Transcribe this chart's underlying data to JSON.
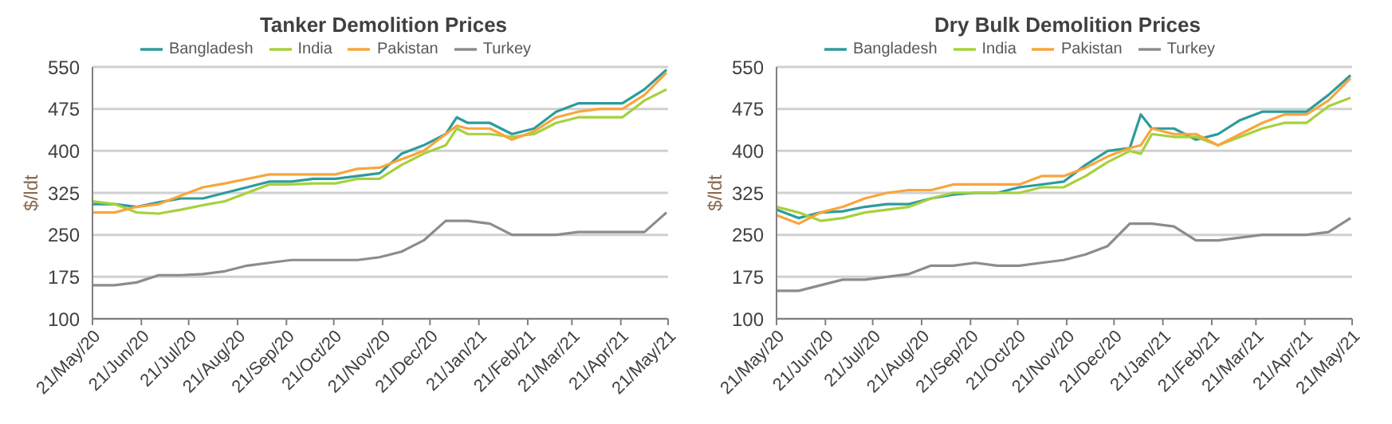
{
  "chart_data": [
    {
      "type": "line",
      "title": "Tanker Demolition Prices",
      "ylabel": "$/ldt",
      "x": [
        "2020-05-21",
        "2020-06-04",
        "2020-06-18",
        "2020-07-02",
        "2020-07-16",
        "2020-07-30",
        "2020-08-13",
        "2020-08-27",
        "2020-09-10",
        "2020-09-24",
        "2020-10-08",
        "2020-10-22",
        "2020-11-05",
        "2020-11-19",
        "2020-12-03",
        "2020-12-17",
        "2020-12-31",
        "2021-01-07",
        "2021-01-14",
        "2021-01-28",
        "2021-02-11",
        "2021-02-25",
        "2021-03-11",
        "2021-03-25",
        "2021-04-08",
        "2021-04-22",
        "2021-05-06",
        "2021-05-20"
      ],
      "series": [
        {
          "name": "Bangladesh",
          "color": "#2e9b9b",
          "values": [
            305,
            305,
            300,
            308,
            315,
            315,
            325,
            335,
            345,
            345,
            350,
            350,
            355,
            360,
            395,
            410,
            430,
            460,
            450,
            450,
            430,
            440,
            470,
            485,
            485,
            485,
            510,
            545
          ]
        },
        {
          "name": "India",
          "color": "#a6d13d",
          "values": [
            310,
            305,
            290,
            288,
            295,
            303,
            310,
            325,
            340,
            340,
            342,
            342,
            350,
            350,
            375,
            395,
            410,
            440,
            430,
            430,
            425,
            430,
            450,
            460,
            460,
            460,
            490,
            510
          ]
        },
        {
          "name": "Pakistan",
          "color": "#f9a53b",
          "values": [
            290,
            290,
            300,
            305,
            320,
            335,
            342,
            350,
            358,
            358,
            358,
            358,
            368,
            370,
            385,
            400,
            430,
            445,
            440,
            440,
            420,
            435,
            460,
            470,
            475,
            475,
            500,
            540
          ]
        },
        {
          "name": "Turkey",
          "color": "#8c8c8c",
          "values": [
            160,
            160,
            165,
            178,
            178,
            180,
            185,
            195,
            200,
            205,
            205,
            205,
            205,
            210,
            220,
            240,
            275,
            275,
            275,
            270,
            250,
            250,
            250,
            255,
            255,
            255,
            255,
            290
          ]
        }
      ],
      "xlim": [
        "2020-05-21",
        "2021-05-21"
      ],
      "xticks": [
        {
          "value": "2020-05-21",
          "label": "21/May/20"
        },
        {
          "value": "2020-06-21",
          "label": "21/Jun/20"
        },
        {
          "value": "2020-07-21",
          "label": "21/Jul/20"
        },
        {
          "value": "2020-08-21",
          "label": "21/Aug/20"
        },
        {
          "value": "2020-09-21",
          "label": "21/Sep/20"
        },
        {
          "value": "2020-10-21",
          "label": "21/Oct/20"
        },
        {
          "value": "2020-11-21",
          "label": "21/Nov/20"
        },
        {
          "value": "2020-12-21",
          "label": "21/Dec/20"
        },
        {
          "value": "2021-01-21",
          "label": "21/Jan/21"
        },
        {
          "value": "2021-02-21",
          "label": "21/Feb/21"
        },
        {
          "value": "2021-03-21",
          "label": "21/Mar/21"
        },
        {
          "value": "2021-04-21",
          "label": "21/Apr/21"
        },
        {
          "value": "2021-05-21",
          "label": "21/May/21"
        }
      ],
      "ylim": [
        100,
        550
      ],
      "yticks": [
        100,
        175,
        250,
        325,
        400,
        475,
        550
      ],
      "grid": "y",
      "legend": "top",
      "marker": "none",
      "line_style": "solid"
    },
    {
      "type": "line",
      "title": "Dry Bulk Demolition Prices",
      "ylabel": "$/ldt",
      "x": [
        "2020-05-21",
        "2020-06-04",
        "2020-06-18",
        "2020-07-02",
        "2020-07-16",
        "2020-07-30",
        "2020-08-13",
        "2020-08-27",
        "2020-09-10",
        "2020-09-24",
        "2020-10-08",
        "2020-10-22",
        "2020-11-05",
        "2020-11-19",
        "2020-12-03",
        "2020-12-17",
        "2020-12-31",
        "2021-01-07",
        "2021-01-14",
        "2021-01-28",
        "2021-02-11",
        "2021-02-25",
        "2021-03-11",
        "2021-03-25",
        "2021-04-08",
        "2021-04-22",
        "2021-05-06",
        "2021-05-20"
      ],
      "series": [
        {
          "name": "Bangladesh",
          "color": "#2e9b9b",
          "values": [
            295,
            280,
            290,
            292,
            300,
            305,
            305,
            315,
            322,
            325,
            325,
            335,
            340,
            345,
            375,
            400,
            405,
            465,
            440,
            440,
            420,
            430,
            455,
            470,
            470,
            470,
            500,
            535
          ]
        },
        {
          "name": "India",
          "color": "#a6d13d",
          "values": [
            300,
            290,
            275,
            280,
            290,
            295,
            300,
            315,
            325,
            325,
            325,
            325,
            335,
            335,
            355,
            380,
            400,
            395,
            430,
            425,
            425,
            410,
            425,
            440,
            450,
            450,
            480,
            495
          ]
        },
        {
          "name": "Pakistan",
          "color": "#f9a53b",
          "values": [
            285,
            270,
            290,
            300,
            315,
            325,
            330,
            330,
            340,
            340,
            340,
            340,
            355,
            355,
            370,
            390,
            405,
            410,
            440,
            430,
            430,
            410,
            430,
            450,
            465,
            465,
            490,
            530
          ]
        },
        {
          "name": "Turkey",
          "color": "#8c8c8c",
          "values": [
            150,
            150,
            160,
            170,
            170,
            175,
            180,
            195,
            195,
            200,
            195,
            195,
            200,
            205,
            215,
            230,
            270,
            270,
            270,
            265,
            240,
            240,
            245,
            250,
            250,
            250,
            255,
            280
          ]
        }
      ],
      "xlim": [
        "2020-05-21",
        "2021-05-21"
      ],
      "xticks": [
        {
          "value": "2020-05-21",
          "label": "21/May/20"
        },
        {
          "value": "2020-06-21",
          "label": "21/Jun/20"
        },
        {
          "value": "2020-07-21",
          "label": "21/Jul/20"
        },
        {
          "value": "2020-08-21",
          "label": "21/Aug/20"
        },
        {
          "value": "2020-09-21",
          "label": "21/Sep/20"
        },
        {
          "value": "2020-10-21",
          "label": "21/Oct/20"
        },
        {
          "value": "2020-11-21",
          "label": "21/Nov/20"
        },
        {
          "value": "2020-12-21",
          "label": "21/Dec/20"
        },
        {
          "value": "2021-01-21",
          "label": "21/Jan/21"
        },
        {
          "value": "2021-02-21",
          "label": "21/Feb/21"
        },
        {
          "value": "2021-03-21",
          "label": "21/Mar/21"
        },
        {
          "value": "2021-04-21",
          "label": "21/Apr/21"
        },
        {
          "value": "2021-05-21",
          "label": "21/May/21"
        }
      ],
      "ylim": [
        100,
        550
      ],
      "yticks": [
        100,
        175,
        250,
        325,
        400,
        475,
        550
      ],
      "grid": "y",
      "legend": "top",
      "marker": "none",
      "line_style": "solid"
    }
  ]
}
